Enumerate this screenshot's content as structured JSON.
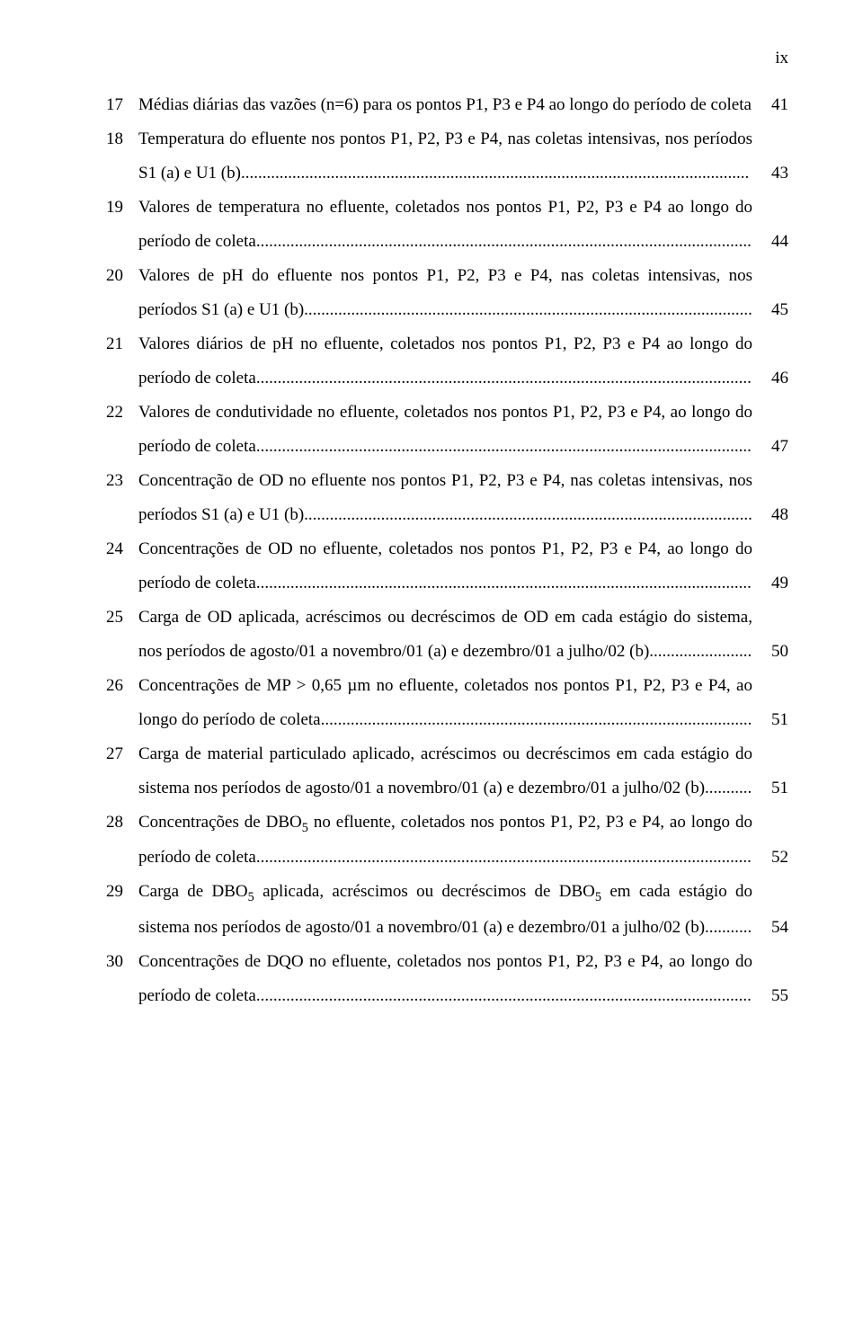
{
  "page_number_label": "ix",
  "font": {
    "family": "Times New Roman",
    "size_pt": 12,
    "color": "#000000"
  },
  "background_color": "#ffffff",
  "line_height": 2.0,
  "entries": [
    {
      "num": "17",
      "text": "Médias diárias das vazões (n=6) para os pontos P1, P3 e P4 ao longo do período de coleta",
      "page": "41"
    },
    {
      "num": "18",
      "text": "Temperatura do efluente nos pontos P1, P2, P3 e P4, nas coletas intensivas, nos períodos S1 (a) e U1 (b)",
      "page": "43"
    },
    {
      "num": "19",
      "text": "Valores de temperatura no efluente, coletados nos pontos P1, P2, P3 e P4 ao longo do período de coleta",
      "page": "44"
    },
    {
      "num": "20",
      "text": "Valores de pH do efluente nos pontos P1, P2, P3 e P4, nas coletas intensivas, nos períodos S1 (a) e U1 (b)",
      "page": "45"
    },
    {
      "num": "21",
      "text": "Valores diários de pH no efluente, coletados nos pontos P1, P2, P3 e P4 ao longo do período de coleta",
      "page": "46"
    },
    {
      "num": "22",
      "text": "Valores de condutividade no efluente, coletados nos pontos P1, P2, P3 e P4, ao longo do período de coleta",
      "page": "47"
    },
    {
      "num": "23",
      "text": "Concentração de OD no efluente nos pontos P1, P2, P3 e P4, nas coletas intensivas, nos períodos S1 (a) e U1 (b)",
      "page": "48"
    },
    {
      "num": "24",
      "text": "Concentrações de OD no efluente, coletados nos pontos P1, P2, P3 e P4, ao longo do período de coleta",
      "page": "49"
    },
    {
      "num": "25",
      "text": "Carga de OD aplicada, acréscimos ou decréscimos de OD em cada estágio do sistema, nos períodos de agosto/01 a novembro/01 (a) e dezembro/01 a julho/02 (b)",
      "page": "50"
    },
    {
      "num": "26",
      "text": "Concentrações de MP > 0,65 µm no efluente, coletados nos pontos P1, P2, P3 e P4, ao longo do período de coleta",
      "page": "51"
    },
    {
      "num": "27",
      "text": "Carga de material particulado aplicado, acréscimos ou decréscimos em cada estágio do sistema nos períodos de agosto/01 a novembro/01 (a) e dezembro/01 a julho/02 (b)",
      "page": "51"
    },
    {
      "num": "28",
      "text": "Concentrações de DBO|5| no efluente, coletados nos pontos P1, P2, P3 e P4, ao longo do período de coleta",
      "page": "52"
    },
    {
      "num": "29",
      "text": "Carga de DBO|5| aplicada, acréscimos ou decréscimos de DBO|5| em cada estágio do sistema nos períodos de agosto/01 a novembro/01 (a) e dezembro/01 a julho/02 (b)",
      "page": "54"
    },
    {
      "num": "30",
      "text": "Concentrações de DQO no efluente, coletados nos pontos P1, P2, P3 e P4, ao longo do período de coleta",
      "page": "55"
    }
  ]
}
